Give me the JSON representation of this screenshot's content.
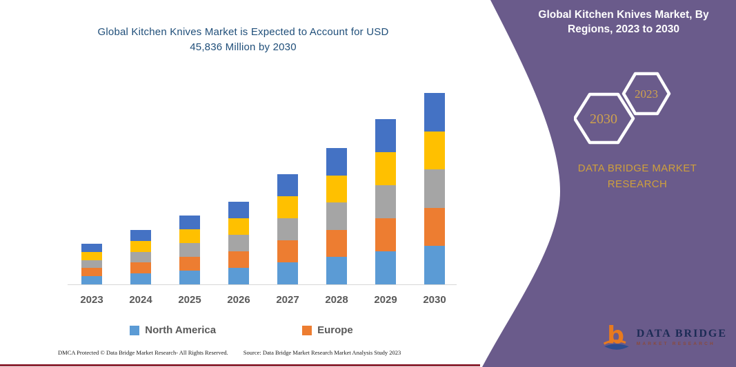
{
  "chart_title": {
    "line1": "Global Kitchen Knives Market is Expected to Account for USD",
    "line2": "45,836 Million by 2030"
  },
  "chart_data": {
    "type": "bar",
    "stacked": true,
    "title": "Global Kitchen Knives Market is Expected to Account for USD 45,836 Million by 2030",
    "categories": [
      "2023",
      "2024",
      "2025",
      "2026",
      "2027",
      "2028",
      "2029",
      "2030"
    ],
    "totals": [
      9760,
      12955,
      16430,
      19855,
      26310,
      32695,
      39550,
      45836
    ],
    "series": [
      {
        "name": "North America",
        "color": "#5b9bd5",
        "values": [
          1952,
          2591,
          3286,
          3971,
          5262,
          6539,
          7910,
          9167
        ]
      },
      {
        "name": "Europe",
        "color": "#ed7d31",
        "values": [
          1952,
          2591,
          3286,
          3971,
          5262,
          6539,
          7910,
          9167
        ]
      },
      {
        "name": "",
        "color": "#a5a5a5",
        "values": [
          1952,
          2591,
          3286,
          3971,
          5262,
          6539,
          7910,
          9167
        ]
      },
      {
        "name": "",
        "color": "#ffc000",
        "values": [
          1952,
          2591,
          3286,
          3971,
          5262,
          6539,
          7910,
          9167
        ]
      },
      {
        "name": "",
        "color": "#4472c4",
        "values": [
          1952,
          2591,
          3286,
          3971,
          5262,
          6539,
          7910,
          9167
        ]
      }
    ],
    "legend": [
      {
        "label": "North America",
        "color": "#5b9bd5"
      },
      {
        "label": "Europe",
        "color": "#ed7d31"
      }
    ],
    "ylim": [
      0,
      45836
    ],
    "gridlines": false,
    "y_axis_visible": false,
    "legend_position": "bottom"
  },
  "sidebar": {
    "title": "Global Kitchen Knives Market, By Regions, 2023 to 2030",
    "hexagons": [
      {
        "label": "2030"
      },
      {
        "label": "2023"
      }
    ],
    "brand_line1": "DATA BRIDGE MARKET",
    "brand_line2": "RESEARCH",
    "logo": {
      "letter": "b",
      "name": "DATA BRIDGE",
      "subtitle": "MARKET RESEARCH"
    },
    "panel_color": "#6a5b8b"
  },
  "footer": {
    "left": "DMCA Protected © Data Bridge Market Research-  All Rights Reserved.",
    "right": "Source: Data Bridge Market Research  Market Analysis Study 2023"
  },
  "colors": {
    "title_blue": "#1f4e79",
    "axis_line": "#d6d6d6",
    "label_gray": "#595959",
    "gold": "#cfa03c",
    "bottom_line_maroon": "#8b2332"
  }
}
